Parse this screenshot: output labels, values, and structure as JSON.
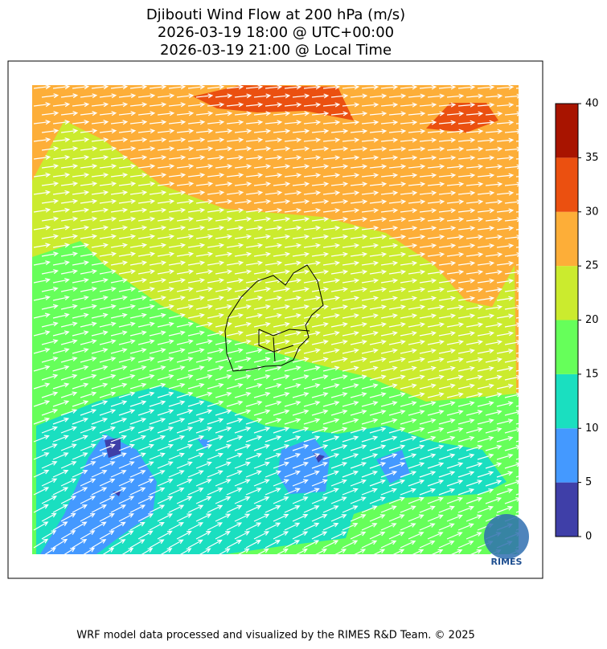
{
  "title": [
    "Djibouti Wind Flow at 200 hPa (m/s)",
    "2026-03-19 18:00 @ UTC+00:00",
    "2026-03-19 21:00 @ Local Time"
  ],
  "colorbar": {
    "ticks": [
      0,
      5,
      10,
      15,
      20,
      25,
      30,
      35,
      40
    ],
    "colors": [
      "#3f3fa8",
      "#4499ff",
      "#1adfc0",
      "#66ff5a",
      "#cbeb2e",
      "#fdae38",
      "#eb5010",
      "#a81400"
    ]
  },
  "logo": "RIMES",
  "footer": "WRF model data processed and visualized by the RIMES R&D Team. © 2025"
}
